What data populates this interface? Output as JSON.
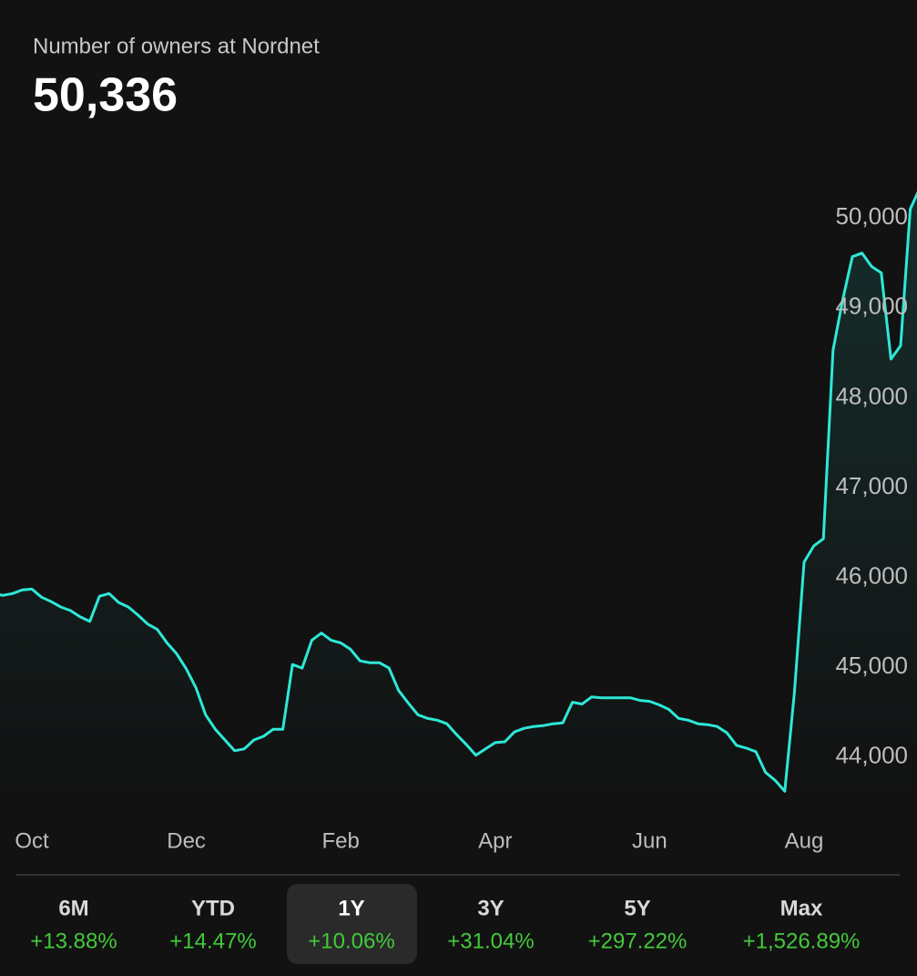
{
  "chart_data": {
    "type": "line",
    "title": "Number of owners at Nordnet",
    "current_value": "50,336",
    "color": "#2ee8d8",
    "categories": [
      null,
      null,
      null,
      null,
      "Oct",
      null,
      null,
      null,
      null,
      null,
      null,
      null,
      null,
      null,
      null,
      null,
      null,
      null,
      null,
      null,
      "Dec",
      null,
      null,
      null,
      null,
      null,
      null,
      null,
      null,
      null,
      null,
      null,
      null,
      null,
      null,
      null,
      "Feb",
      null,
      null,
      null,
      null,
      null,
      null,
      null,
      null,
      null,
      null,
      null,
      null,
      null,
      null,
      null,
      "Apr",
      null,
      null,
      null,
      null,
      null,
      null,
      null,
      null,
      null,
      null,
      null,
      null,
      null,
      null,
      null,
      "Jun",
      null,
      null,
      null,
      null,
      null,
      null,
      null,
      null,
      null,
      null,
      null,
      null,
      null,
      null,
      null,
      "Aug",
      null,
      null,
      null,
      null,
      null,
      null,
      null,
      null,
      null,
      null,
      null,
      null
    ],
    "values": [
      45820,
      45800,
      45820,
      45860,
      45870,
      45780,
      45730,
      45670,
      45630,
      45560,
      45510,
      45790,
      45820,
      45720,
      45670,
      45580,
      45480,
      45420,
      45270,
      45150,
      44980,
      44770,
      44470,
      44310,
      44190,
      44070,
      44090,
      44190,
      44230,
      44310,
      44310,
      45030,
      44990,
      45300,
      45380,
      45300,
      45270,
      45200,
      45070,
      45050,
      45050,
      44990,
      44740,
      44600,
      44470,
      44430,
      44410,
      44370,
      44250,
      44140,
      44020,
      44090,
      44160,
      44170,
      44280,
      44320,
      44340,
      44350,
      44370,
      44380,
      44610,
      44590,
      44670,
      44660,
      44660,
      44660,
      44660,
      44630,
      44620,
      44580,
      44530,
      44430,
      44410,
      44370,
      44360,
      44340,
      44270,
      44130,
      44100,
      44060,
      43830,
      43740,
      43620,
      44720,
      46170,
      46350,
      46430,
      48530,
      49090,
      49570,
      49610,
      49460,
      49390,
      48430,
      48580,
      50100,
      50336
    ],
    "ylim": [
      43500,
      50500
    ],
    "yticks": [
      {
        "value": 44000,
        "label": "44,000"
      },
      {
        "value": 45000,
        "label": "45,000"
      },
      {
        "value": 46000,
        "label": "46,000"
      },
      {
        "value": 47000,
        "label": "47,000"
      },
      {
        "value": 48000,
        "label": "48,000"
      },
      {
        "value": 49000,
        "label": "49,000"
      },
      {
        "value": 50000,
        "label": "50,000"
      }
    ],
    "periods": [
      {
        "label": "6M",
        "change": "+13.88%"
      },
      {
        "label": "YTD",
        "change": "+14.47%"
      },
      {
        "label": "1Y",
        "change": "+10.06%"
      },
      {
        "label": "3Y",
        "change": "+31.04%"
      },
      {
        "label": "5Y",
        "change": "+297.22%"
      },
      {
        "label": "Max",
        "change": "+1,526.89%"
      }
    ],
    "selected_period": "1Y"
  }
}
